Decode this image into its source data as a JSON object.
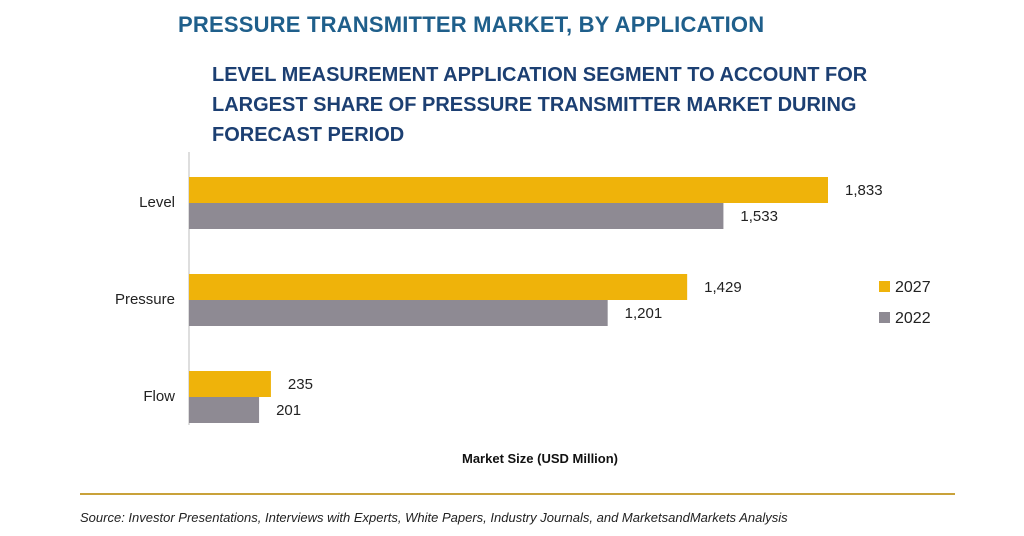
{
  "header": {
    "title": "PRESSURE TRANSMITTER MARKET, BY APPLICATION",
    "subtitle": "LEVEL MEASUREMENT APPLICATION SEGMENT TO ACCOUNT FOR LARGEST SHARE OF PRESSURE TRANSMITTER MARKET DURING FORECAST PERIOD"
  },
  "footer": {
    "source": "Source: Investor Presentations, Interviews with Experts, White Papers, Industry Journals, and MarketsandMarkets Analysis"
  },
  "chart_data": {
    "type": "bar",
    "orientation": "horizontal",
    "title": "",
    "xlabel": "Market Size (USD Million)",
    "ylabel": "",
    "categories": [
      "Level",
      "Pressure",
      "Flow"
    ],
    "series": [
      {
        "name": "2027",
        "values": [
          1833,
          1429,
          235
        ],
        "labels": [
          "1,833",
          "1,429",
          "235"
        ],
        "color": "#efb30a"
      },
      {
        "name": "2022",
        "values": [
          1533,
          1201,
          201
        ],
        "labels": [
          "1,533",
          "1,201",
          "201"
        ],
        "color": "#8e8a93"
      }
    ],
    "xlim": [
      0,
      2000
    ],
    "grid": false,
    "legend_position": "right"
  }
}
